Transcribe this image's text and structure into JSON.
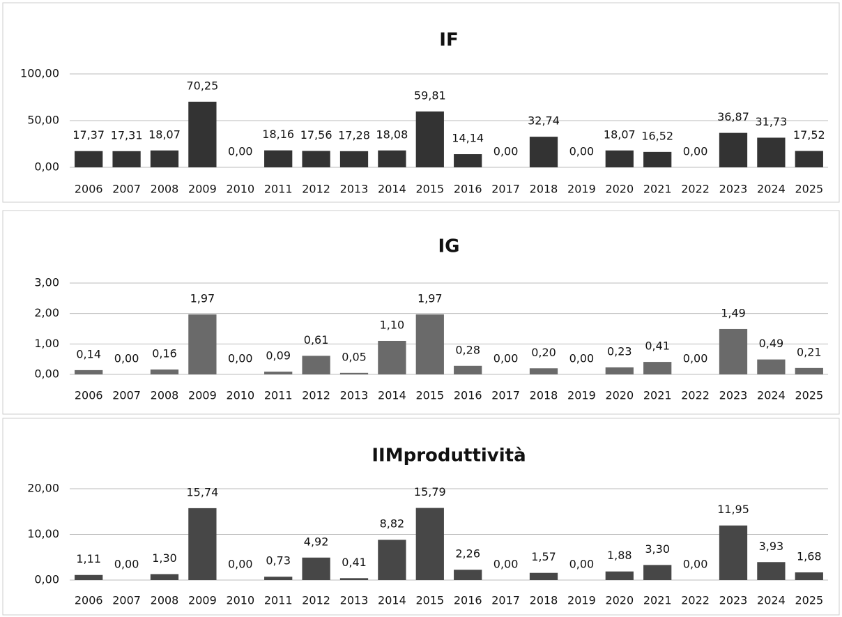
{
  "chart_data": [
    {
      "type": "bar",
      "title": "IF",
      "color": "#333333",
      "grid": true,
      "categories": [
        "2006",
        "2007",
        "2008",
        "2009",
        "2010",
        "2011",
        "2012",
        "2013",
        "2014",
        "2015",
        "2016",
        "2017",
        "2018",
        "2019",
        "2020",
        "2021",
        "2022",
        "2023",
        "2024",
        "2025"
      ],
      "values": [
        17.37,
        17.31,
        18.07,
        70.25,
        0,
        18.16,
        17.56,
        17.28,
        18.08,
        59.81,
        14.14,
        0,
        32.74,
        0,
        18.07,
        16.52,
        0,
        36.87,
        31.73,
        17.52
      ],
      "value_labels": [
        "17,37",
        "17,31",
        "18,07",
        "70,25",
        "0,00",
        "18,16",
        "17,56",
        "17,28",
        "18,08",
        "59,81",
        "14,14",
        "0,00",
        "32,74",
        "0,00",
        "18,07",
        "16,52",
        "0,00",
        "36,87",
        "31,73",
        "17,52"
      ],
      "ylim": [
        0,
        100
      ],
      "yticks": [
        {
          "value": 0,
          "label": "0,00"
        },
        {
          "value": 50,
          "label": "50,00"
        },
        {
          "value": 100,
          "label": "100,00"
        }
      ]
    },
    {
      "type": "bar",
      "title": "IG",
      "color": "#6a6a6a",
      "grid": true,
      "categories": [
        "2006",
        "2007",
        "2008",
        "2009",
        "2010",
        "2011",
        "2012",
        "2013",
        "2014",
        "2015",
        "2016",
        "2017",
        "2018",
        "2019",
        "2020",
        "2021",
        "2022",
        "2023",
        "2024",
        "2025"
      ],
      "values": [
        0.14,
        0,
        0.16,
        1.97,
        0,
        0.09,
        0.61,
        0.05,
        1.1,
        1.97,
        0.28,
        0,
        0.2,
        0,
        0.23,
        0.41,
        0,
        1.49,
        0.49,
        0.21
      ],
      "value_labels": [
        "0,14",
        "0,00",
        "0,16",
        "1,97",
        "0,00",
        "0,09",
        "0,61",
        "0,05",
        "1,10",
        "1,97",
        "0,28",
        "0,00",
        "0,20",
        "0,00",
        "0,23",
        "0,41",
        "0,00",
        "1,49",
        "0,49",
        "0,21"
      ],
      "ylim": [
        0,
        3
      ],
      "yticks": [
        {
          "value": 0,
          "label": "0,00"
        },
        {
          "value": 1,
          "label": "1,00"
        },
        {
          "value": 2,
          "label": "2,00"
        },
        {
          "value": 3,
          "label": "3,00"
        }
      ]
    },
    {
      "type": "bar",
      "title": "IIMproduttività",
      "color": "#474747",
      "grid": true,
      "categories": [
        "2006",
        "2007",
        "2008",
        "2009",
        "2010",
        "2011",
        "2012",
        "2013",
        "2014",
        "2015",
        "2016",
        "2017",
        "2018",
        "2019",
        "2020",
        "2021",
        "2022",
        "2023",
        "2024",
        "2025"
      ],
      "values": [
        1.11,
        0,
        1.3,
        15.74,
        0,
        0.73,
        4.92,
        0.41,
        8.82,
        15.79,
        2.26,
        0,
        1.57,
        0,
        1.88,
        3.3,
        0,
        11.95,
        3.93,
        1.68
      ],
      "value_labels": [
        "1,11",
        "0,00",
        "1,30",
        "15,74",
        "0,00",
        "0,73",
        "4,92",
        "0,41",
        "8,82",
        "15,79",
        "2,26",
        "0,00",
        "1,57",
        "0,00",
        "1,88",
        "3,30",
        "0,00",
        "11,95",
        "3,93",
        "1,68"
      ],
      "ylim": [
        0,
        20
      ],
      "yticks": [
        {
          "value": 0,
          "label": "0,00"
        },
        {
          "value": 10,
          "label": "10,00"
        },
        {
          "value": 20,
          "label": "20,00"
        }
      ]
    }
  ]
}
